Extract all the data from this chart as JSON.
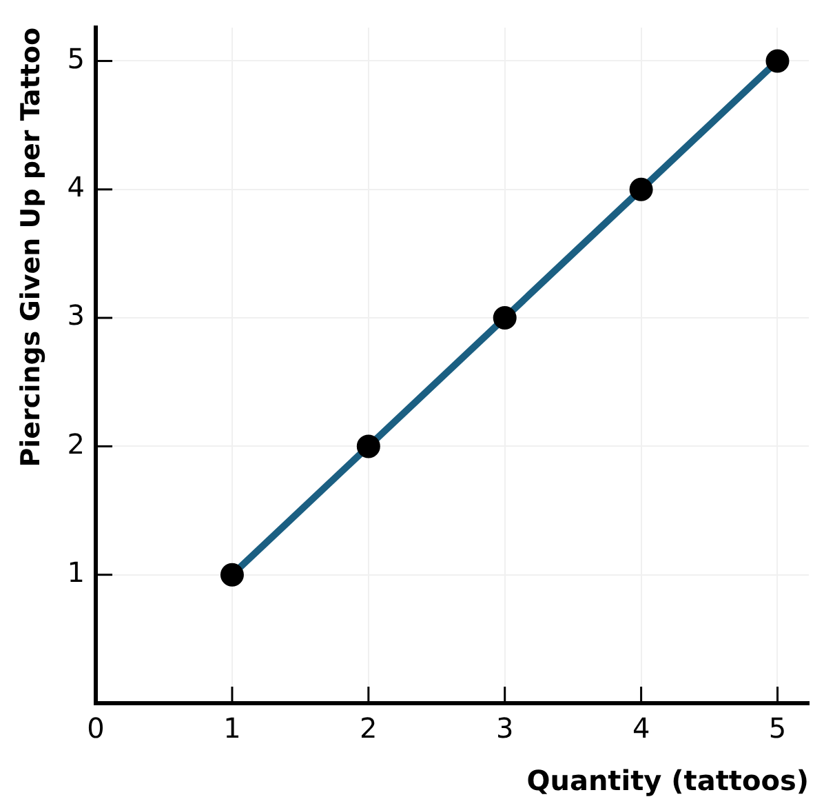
{
  "chart_data": {
    "type": "line",
    "xlabel": "Quantity (tattoos)",
    "ylabel": "Piercings Given Up per Tattoo",
    "x": [
      1,
      2,
      3,
      4,
      5
    ],
    "series": [
      {
        "color": "#1b5f82",
        "values": [
          1,
          2,
          3,
          4,
          5
        ]
      }
    ],
    "xlim": [
      0,
      5.23
    ],
    "ylim": [
      0,
      5.26
    ],
    "xticks": [
      0,
      1,
      2,
      3,
      4,
      5
    ],
    "yticks": [
      1,
      2,
      3,
      4,
      5
    ],
    "grid": true,
    "legend": false,
    "marker": "circle",
    "line_style": "solid"
  }
}
